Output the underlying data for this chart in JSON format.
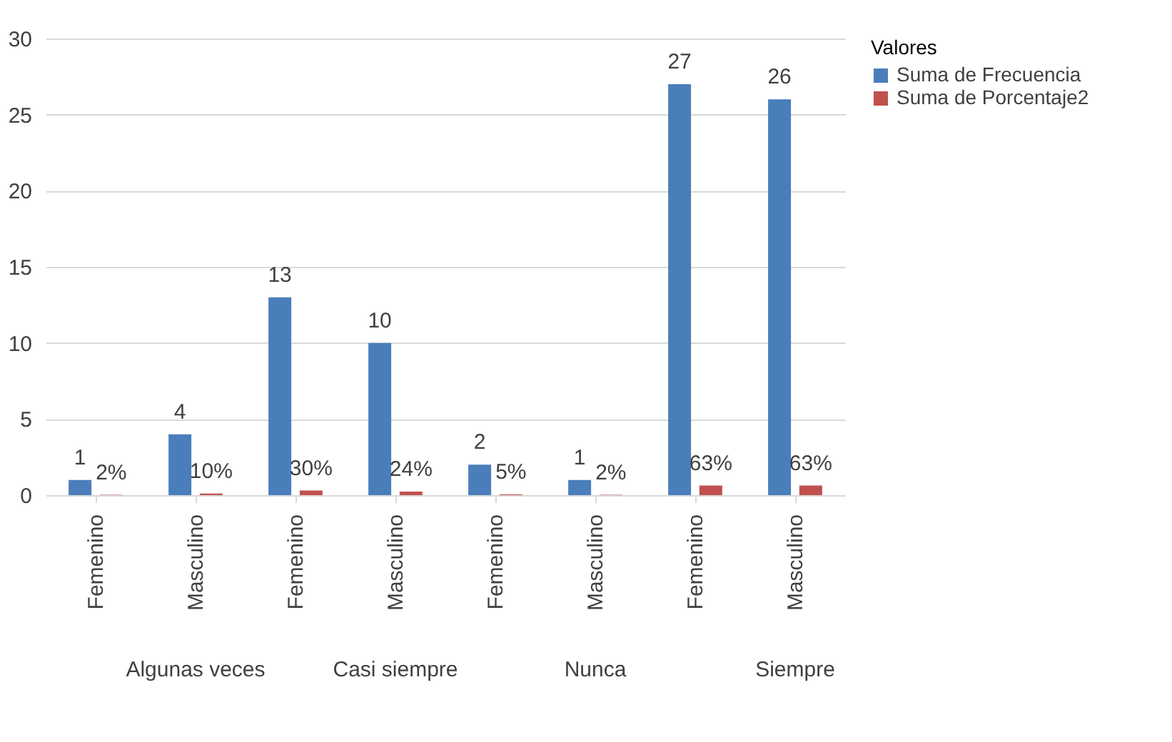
{
  "chart_data": {
    "type": "bar",
    "categories": [
      "Femenino",
      "Masculino",
      "Femenino",
      "Masculino",
      "Femenino",
      "Masculino",
      "Femenino",
      "Masculino"
    ],
    "series": [
      {
        "name": "Suma de Frecuencia",
        "color": "#4a7ebb",
        "values": [
          1,
          4,
          13,
          10,
          2,
          1,
          27,
          26
        ],
        "value_labels": [
          "1",
          "4",
          "13",
          "10",
          "2",
          "1",
          "27",
          "26"
        ]
      },
      {
        "name": "Suma de Porcentaje2",
        "color": "#c0504d",
        "values": [
          0.02,
          0.1,
          0.3,
          0.24,
          0.05,
          0.02,
          0.63,
          0.63
        ],
        "value_labels": [
          "2%",
          "10%",
          "30%",
          "24%",
          "5%",
          "2%",
          "63%",
          "63%"
        ]
      }
    ],
    "annotations": [
      "Algunas veces",
      "Casi siempre",
      "Nunca",
      "Siempre"
    ],
    "legend_title": "Valores",
    "legend": "right",
    "ylim": [
      0,
      30
    ],
    "yticks": [
      0,
      5,
      10,
      15,
      20,
      25,
      30
    ],
    "grid": "y"
  }
}
